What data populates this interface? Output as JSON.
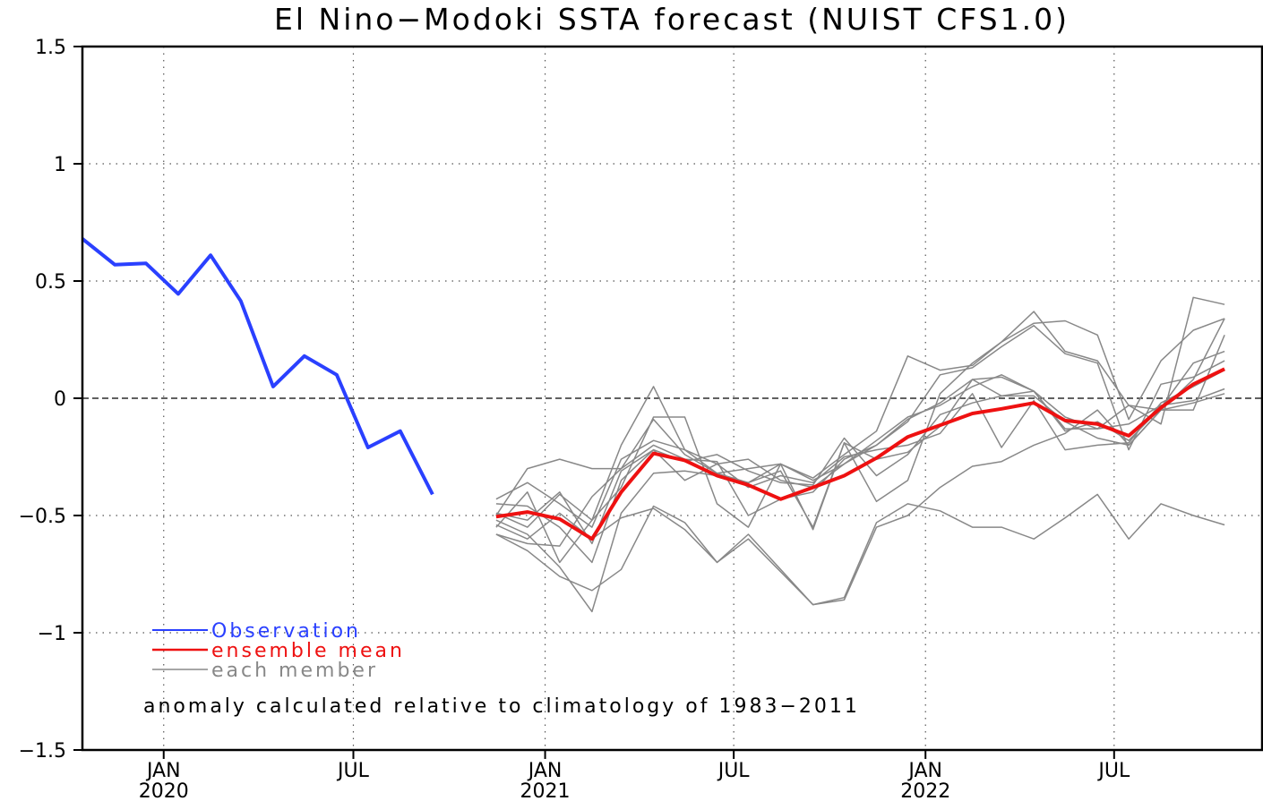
{
  "chart_data": {
    "type": "line",
    "title": "El Nino−Modoki SSTA forecast (NUIST CFS1.0)",
    "xlabel": "",
    "ylabel": "",
    "ylim": [
      -1.5,
      1.5
    ],
    "xlim": [
      "2019-10-15",
      "2022-11-20"
    ],
    "yticks": [
      {
        "value": 1.5,
        "label": "1.5"
      },
      {
        "value": 1,
        "label": "1"
      },
      {
        "value": 0.5,
        "label": "0.5"
      },
      {
        "value": 0,
        "label": "0"
      },
      {
        "value": -0.5,
        "label": "−0.5"
      },
      {
        "value": -1,
        "label": "−1"
      },
      {
        "value": -1.5,
        "label": "−1.5"
      }
    ],
    "xticks": [
      {
        "date": "2020-01-01",
        "month": "JAN",
        "year": "2020"
      },
      {
        "date": "2020-07-01",
        "month": "JUL",
        "year": ""
      },
      {
        "date": "2021-01-01",
        "month": "JAN",
        "year": "2021"
      },
      {
        "date": "2021-07-01",
        "month": "JUL",
        "year": ""
      },
      {
        "date": "2022-01-01",
        "month": "JAN",
        "year": "2022"
      },
      {
        "date": "2022-07-01",
        "month": "JUL",
        "year": ""
      }
    ],
    "grid": true,
    "zero_line": true,
    "legend_position": "bottom-left",
    "note": "anomaly calculated relative to climatology of 1983−2011",
    "observation": {
      "name": "Observation",
      "color": "#2a40ff",
      "dates": [
        "2019-10-15",
        "2019-11-15",
        "2019-12-15",
        "2020-01-15",
        "2020-02-15",
        "2020-03-15",
        "2020-04-15",
        "2020-05-15",
        "2020-06-15",
        "2020-07-15",
        "2020-08-15",
        "2020-09-15",
        "2020-10-15"
      ],
      "values": [
        0.68,
        0.57,
        0.575,
        0.445,
        0.61,
        0.415,
        0.05,
        0.18,
        0.1,
        -0.21,
        -0.14,
        -0.41,
        null
      ]
    },
    "forecast_dates": [
      "2020-11-15",
      "2020-12-15",
      "2021-01-15",
      "2021-02-15",
      "2021-03-15",
      "2021-04-15",
      "2021-05-15",
      "2021-06-15",
      "2021-07-15",
      "2021-08-15",
      "2021-09-15",
      "2021-10-15",
      "2021-11-15",
      "2021-12-15",
      "2022-01-15",
      "2022-02-15",
      "2022-03-15",
      "2022-04-15",
      "2022-05-15",
      "2022-06-15",
      "2022-07-15",
      "2022-08-15",
      "2022-09-15",
      "2022-10-15"
    ],
    "ensemble_mean": {
      "name": "ensemble mean",
      "color": "#ee1111",
      "values": [
        -0.505,
        -0.485,
        -0.515,
        -0.6,
        -0.4,
        -0.235,
        -0.265,
        -0.33,
        -0.37,
        -0.43,
        -0.38,
        -0.33,
        -0.255,
        -0.165,
        -0.115,
        -0.065,
        -0.045,
        -0.02,
        -0.095,
        -0.11,
        -0.16,
        -0.04,
        0.06,
        0.125
      ]
    },
    "members": {
      "name": "each member",
      "color": "#888888",
      "series": [
        [
          -0.43,
          -0.36,
          -0.45,
          -0.55,
          -0.26,
          -0.18,
          -0.22,
          -0.28,
          -0.26,
          -0.35,
          -0.38,
          -0.28,
          -0.18,
          -0.08,
          -0.03,
          0.05,
          0.1,
          0.03,
          -0.14,
          -0.1,
          -0.18,
          -0.04,
          0.15,
          0.2
        ],
        [
          -0.5,
          -0.3,
          -0.26,
          -0.3,
          -0.3,
          -0.09,
          -0.24,
          -0.32,
          -0.36,
          -0.28,
          -0.35,
          -0.28,
          -0.2,
          -0.09,
          -0.02,
          0.08,
          0.09,
          0.03,
          -0.08,
          -0.13,
          -0.03,
          -0.05,
          0.08,
          0.34
        ],
        [
          -0.49,
          -0.55,
          -0.41,
          -0.52,
          -0.2,
          0.05,
          -0.22,
          -0.32,
          -0.3,
          -0.28,
          -0.34,
          -0.24,
          -0.14,
          0.18,
          0.12,
          0.14,
          0.24,
          0.37,
          0.2,
          0.16,
          -0.03,
          -0.11,
          0.43,
          0.4
        ],
        [
          -0.55,
          -0.4,
          -0.7,
          -0.52,
          -0.38,
          -0.08,
          -0.08,
          -0.45,
          -0.55,
          -0.28,
          -0.56,
          -0.19,
          -0.44,
          -0.35,
          0.02,
          0.15,
          0.24,
          0.32,
          0.33,
          0.27,
          -0.09,
          0.16,
          0.29,
          0.34
        ],
        [
          -0.58,
          -0.62,
          -0.63,
          -0.42,
          -0.3,
          -0.2,
          -0.26,
          -0.27,
          -0.5,
          -0.43,
          -0.4,
          -0.26,
          -0.2,
          -0.1,
          0.1,
          0.13,
          0.22,
          0.31,
          0.19,
          0.15,
          -0.22,
          0.06,
          0.09,
          0.16
        ],
        [
          -0.45,
          -0.46,
          -0.55,
          -0.7,
          -0.35,
          -0.22,
          -0.35,
          -0.28,
          -0.38,
          -0.33,
          -0.36,
          -0.25,
          -0.22,
          -0.2,
          -0.15,
          0.02,
          -0.21,
          -0.01,
          -0.22,
          -0.2,
          -0.19,
          -0.02,
          0.05,
          0.12
        ],
        [
          -0.52,
          -0.58,
          -0.72,
          -0.91,
          -0.49,
          -0.32,
          -0.31,
          -0.33,
          -0.36,
          -0.31,
          -0.55,
          -0.19,
          -0.26,
          -0.23,
          -0.12,
          0.08,
          0.01,
          0.01,
          -0.1,
          -0.17,
          -0.2,
          -0.05,
          -0.02,
          0.02
        ],
        [
          -0.58,
          -0.65,
          -0.76,
          -0.82,
          -0.73,
          -0.46,
          -0.53,
          -0.7,
          -0.6,
          -0.74,
          -0.88,
          -0.86,
          -0.55,
          -0.5,
          -0.38,
          -0.29,
          -0.27,
          -0.2,
          -0.15,
          -0.05,
          -0.2,
          -0.05,
          -0.05,
          0.27
        ],
        [
          -0.54,
          -0.6,
          -0.49,
          -0.6,
          -0.51,
          -0.47,
          -0.56,
          -0.7,
          -0.58,
          -0.73,
          -0.88,
          -0.85,
          -0.53,
          -0.45,
          -0.48,
          -0.55,
          -0.55,
          -0.6,
          -0.51,
          -0.41,
          -0.6,
          -0.45,
          -0.5,
          -0.54
        ],
        [
          -0.49,
          -0.52,
          -0.4,
          -0.62,
          -0.31,
          -0.22,
          -0.27,
          -0.24,
          -0.31,
          -0.36,
          -0.37,
          -0.17,
          -0.33,
          -0.24,
          -0.07,
          -0.02,
          0.01,
          0.03,
          -0.13,
          -0.13,
          -0.11,
          -0.03,
          -0.01,
          0.04
        ]
      ]
    }
  }
}
